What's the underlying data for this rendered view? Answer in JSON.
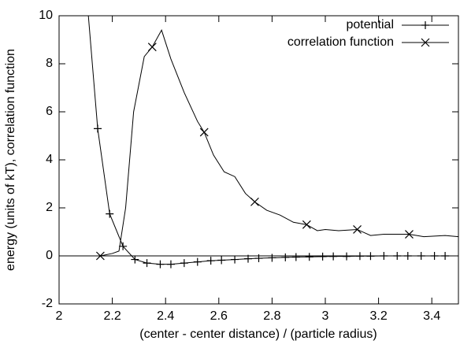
{
  "chart_data": {
    "type": "line",
    "xlabel": "(center - center distance) / (particle radius)",
    "ylabel": "energy (units of kT), correlation function",
    "xlim": [
      2,
      3.5
    ],
    "xticks": [
      2,
      2.2,
      2.4,
      2.6,
      2.8,
      3,
      3.2,
      3.4
    ],
    "ylim": [
      -2,
      10
    ],
    "yticks": [
      -2,
      0,
      2,
      4,
      6,
      8,
      10
    ],
    "zeroline": true,
    "legend": "top-right",
    "series": [
      {
        "name": "potential",
        "color": "#000000",
        "marker": "+",
        "x": [
          2.11,
          2.145,
          2.19,
          2.24,
          2.285,
          2.33,
          2.38,
          2.42,
          2.47,
          2.52,
          2.57,
          2.61,
          2.66,
          2.71,
          2.75,
          2.8,
          2.85,
          2.89,
          2.94,
          2.99,
          3.03,
          3.08,
          3.13,
          3.17,
          3.22,
          3.27,
          3.31,
          3.36,
          3.41,
          3.45,
          3.5
        ],
        "values": [
          10,
          5.3,
          1.75,
          0.4,
          -0.15,
          -0.3,
          -0.35,
          -0.35,
          -0.3,
          -0.25,
          -0.2,
          -0.18,
          -0.15,
          -0.12,
          -0.1,
          -0.08,
          -0.06,
          -0.05,
          -0.04,
          -0.03,
          -0.02,
          -0.02,
          -0.01,
          -0.01,
          0,
          0,
          0,
          0,
          0,
          0,
          0
        ],
        "markers": {
          "x": [
            2.145,
            2.19,
            2.24,
            2.285,
            2.33,
            2.38,
            2.42,
            2.47,
            2.52,
            2.57,
            2.61,
            2.66,
            2.71,
            2.75,
            2.8,
            2.85,
            2.89,
            2.94,
            2.99,
            3.03,
            3.08,
            3.13,
            3.17,
            3.22,
            3.27,
            3.31,
            3.36,
            3.41,
            3.45
          ],
          "values": [
            5.3,
            1.75,
            0.4,
            -0.15,
            -0.3,
            -0.35,
            -0.35,
            -0.3,
            -0.25,
            -0.2,
            -0.18,
            -0.15,
            -0.12,
            -0.1,
            -0.08,
            -0.06,
            -0.05,
            -0.04,
            -0.03,
            -0.02,
            -0.02,
            -0.01,
            -0.01,
            0,
            0,
            0,
            0,
            0,
            0
          ]
        }
      },
      {
        "name": "correlation function",
        "color": "#000000",
        "marker": "x",
        "x": [
          2.155,
          2.2,
          2.225,
          2.25,
          2.28,
          2.32,
          2.35,
          2.385,
          2.42,
          2.47,
          2.52,
          2.545,
          2.58,
          2.62,
          2.66,
          2.7,
          2.735,
          2.78,
          2.83,
          2.88,
          2.93,
          2.97,
          3.0,
          3.05,
          3.12,
          3.17,
          3.22,
          3.315,
          3.37,
          3.45,
          3.5
        ],
        "values": [
          0,
          0.1,
          0.2,
          2,
          6,
          8.3,
          8.7,
          9.4,
          8.2,
          6.8,
          5.6,
          5.15,
          4.2,
          3.5,
          3.3,
          2.6,
          2.25,
          1.9,
          1.7,
          1.4,
          1.3,
          1.05,
          1.1,
          1.05,
          1.1,
          0.85,
          0.9,
          0.9,
          0.8,
          0.85,
          0.8
        ],
        "markers": {
          "x": [
            2.155,
            2.35,
            2.545,
            2.735,
            2.93,
            3.12,
            3.315
          ],
          "values": [
            0,
            8.7,
            5.15,
            2.25,
            1.3,
            1.1,
            0.9
          ]
        }
      }
    ]
  }
}
